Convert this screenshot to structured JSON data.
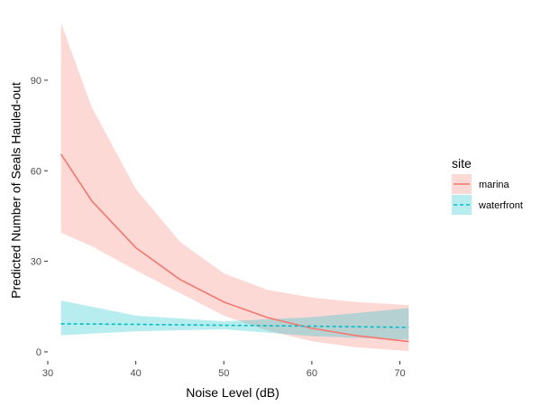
{
  "chart_data": {
    "type": "line",
    "title": "",
    "xlabel": "Noise Level (dB)",
    "ylabel": "Predicted Number of Seals Hauled-out",
    "xlim": [
      30,
      72
    ],
    "ylim": [
      -3,
      110
    ],
    "x_ticks": [
      30,
      40,
      50,
      60,
      70
    ],
    "y_ticks": [
      0,
      30,
      60,
      90
    ],
    "grid": false,
    "legend": {
      "title": "site",
      "placement": "right"
    },
    "series": [
      {
        "name": "marina",
        "color": "#F8766D",
        "ribbon_color": "#F8766D",
        "line_style": "solid",
        "x": [
          31.5,
          35,
          40,
          45,
          50,
          55,
          60,
          65,
          71
        ],
        "y": [
          65.5,
          50,
          34.5,
          24,
          16.5,
          11.3,
          7.8,
          5.4,
          3.4
        ],
        "lower": [
          39.5,
          35,
          27,
          19.5,
          12,
          7,
          3.5,
          1.5,
          0.3
        ],
        "upper": [
          109,
          81,
          54,
          36.5,
          26,
          20.5,
          18,
          16.5,
          15.5
        ]
      },
      {
        "name": "waterfront",
        "color": "#00BFC4",
        "ribbon_color": "#00BFC4",
        "line_style": "dashed",
        "x": [
          31.5,
          40,
          50,
          60,
          71
        ],
        "y": [
          9.3,
          9.1,
          8.8,
          8.5,
          8.1
        ],
        "lower": [
          5.5,
          6.8,
          7.5,
          5.2,
          4
        ],
        "upper": [
          17,
          12,
          10.1,
          11.5,
          14.5
        ]
      }
    ]
  }
}
